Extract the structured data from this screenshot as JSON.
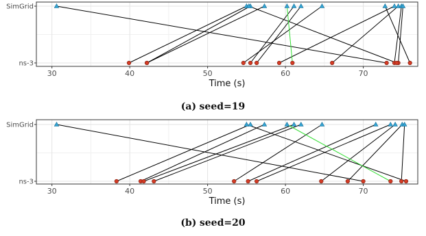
{
  "chart_data": [
    {
      "type": "scatter",
      "title": "",
      "xlabel": "Time (s)",
      "ylabel": "",
      "xlim": [
        28,
        77
      ],
      "x_ticks": [
        30,
        40,
        50,
        60,
        70
      ],
      "y_categories": [
        "SimGrid",
        "ns-3"
      ],
      "grid": true,
      "legend": "none",
      "caption": {
        "label": "(a)",
        "text": "seed=19"
      },
      "colors": {
        "simgrid_point": "#33a4d4",
        "ns3_point": "#d43b24",
        "link": "#000000",
        "highlight_link": "#33dd33"
      },
      "links": [
        {
          "simgrid": 30.6,
          "ns3": 73.0,
          "highlight": false
        },
        {
          "simgrid": 55.0,
          "ns3": 39.9,
          "highlight": false
        },
        {
          "simgrid": 55.5,
          "ns3": 42.2,
          "highlight": false
        },
        {
          "simgrid": 57.3,
          "ns3": 42.2,
          "highlight": false
        },
        {
          "simgrid": 60.2,
          "ns3": 60.9,
          "highlight": true
        },
        {
          "simgrid": 61.1,
          "ns3": 55.5,
          "highlight": false
        },
        {
          "simgrid": 62.0,
          "ns3": 56.3,
          "highlight": false
        },
        {
          "simgrid": 64.7,
          "ns3": 54.6,
          "highlight": false
        },
        {
          "simgrid": 72.8,
          "ns3": 76.0,
          "highlight": false
        },
        {
          "simgrid": 74.0,
          "ns3": 59.2,
          "highlight": false
        },
        {
          "simgrid": 74.5,
          "ns3": 66.0,
          "highlight": false
        },
        {
          "simgrid": 74.9,
          "ns3": 74.0,
          "highlight": false
        },
        {
          "simgrid": 75.1,
          "ns3": 74.5,
          "highlight": false
        },
        {
          "simgrid": 55.3,
          "ns3": 74.3,
          "highlight": false
        }
      ]
    },
    {
      "type": "scatter",
      "title": "",
      "xlabel": "Time (s)",
      "ylabel": "",
      "xlim": [
        28,
        77
      ],
      "x_ticks": [
        30,
        40,
        50,
        60,
        70
      ],
      "y_categories": [
        "SimGrid",
        "ns-3"
      ],
      "grid": true,
      "legend": "none",
      "caption": {
        "label": "(b)",
        "text": "seed=20"
      },
      "colors": {
        "simgrid_point": "#33a4d4",
        "ns3_point": "#d43b24",
        "link": "#000000",
        "highlight_link": "#33dd33"
      },
      "links": [
        {
          "simgrid": 30.6,
          "ns3": 70.0,
          "highlight": false
        },
        {
          "simgrid": 55.0,
          "ns3": 75.5,
          "highlight": false
        },
        {
          "simgrid": 55.5,
          "ns3": 38.3,
          "highlight": false
        },
        {
          "simgrid": 57.3,
          "ns3": 41.4,
          "highlight": false
        },
        {
          "simgrid": 60.2,
          "ns3": 73.5,
          "highlight": true
        },
        {
          "simgrid": 61.1,
          "ns3": 41.8,
          "highlight": false
        },
        {
          "simgrid": 62.0,
          "ns3": 43.1,
          "highlight": false
        },
        {
          "simgrid": 64.7,
          "ns3": 53.4,
          "highlight": false
        },
        {
          "simgrid": 71.6,
          "ns3": 55.2,
          "highlight": false
        },
        {
          "simgrid": 73.5,
          "ns3": 56.3,
          "highlight": false
        },
        {
          "simgrid": 74.1,
          "ns3": 64.6,
          "highlight": false
        },
        {
          "simgrid": 75.0,
          "ns3": 68.0,
          "highlight": false
        },
        {
          "simgrid": 75.3,
          "ns3": 74.9,
          "highlight": false
        }
      ]
    }
  ]
}
